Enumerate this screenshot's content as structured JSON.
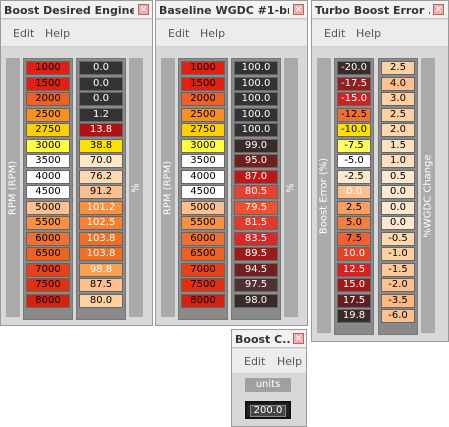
{
  "windows": [
    {
      "title": "Boost Desired Engine ...",
      "menu": [
        "Edit",
        "Help"
      ],
      "axis_label": "RPM (RPM)",
      "value_label": "%",
      "rows": [
        {
          "x": "1000",
          "xc": "#e02010",
          "v": "0.0",
          "vc": "#333333",
          "vt": "#ffffff"
        },
        {
          "x": "1500",
          "xc": "#e02010",
          "v": "0.0",
          "vc": "#333333",
          "vt": "#ffffff"
        },
        {
          "x": "2000",
          "xc": "#f06020",
          "v": "0.0",
          "vc": "#333333",
          "vt": "#ffffff"
        },
        {
          "x": "2500",
          "xc": "#f89020",
          "v": "1.2",
          "vc": "#333333",
          "vt": "#ffffff"
        },
        {
          "x": "2750",
          "xc": "#ffd000",
          "v": "13.8",
          "vc": "#b01010",
          "vt": "#ffffff"
        },
        {
          "x": "3000",
          "xc": "#ffff40",
          "v": "38.8",
          "vc": "#ffe000",
          "vt": "#000000"
        },
        {
          "x": "3500",
          "xc": "#ffffff",
          "v": "70.0",
          "vc": "#ffe8c8",
          "vt": "#000000"
        },
        {
          "x": "4000",
          "xc": "#ffffff",
          "v": "76.2",
          "vc": "#ffd8b0",
          "vt": "#000000"
        },
        {
          "x": "4500",
          "xc": "#ffffff",
          "v": "91.2",
          "vc": "#ffc090",
          "vt": "#000000"
        },
        {
          "x": "5000",
          "xc": "#ffc090",
          "v": "101.2",
          "vc": "#f89040",
          "vt": "#ffffff"
        },
        {
          "x": "5500",
          "xc": "#f89040",
          "v": "102.5",
          "vc": "#f88030",
          "vt": "#ffffff"
        },
        {
          "x": "6000",
          "xc": "#f07030",
          "v": "103.8",
          "vc": "#f07020",
          "vt": "#ffffff"
        },
        {
          "x": "6500",
          "xc": "#f06020",
          "v": "103.8",
          "vc": "#f07020",
          "vt": "#ffffff"
        },
        {
          "x": "7000",
          "xc": "#e84018",
          "v": "98.8",
          "vc": "#f8a050",
          "vt": "#ffffff"
        },
        {
          "x": "7500",
          "xc": "#e03010",
          "v": "87.5",
          "vc": "#ffc090",
          "vt": "#000000"
        },
        {
          "x": "8000",
          "xc": "#d82010",
          "v": "80.0",
          "vc": "#ffd0a0",
          "vt": "#000000"
        }
      ]
    },
    {
      "title": "Baseline WGDC #1-br...",
      "menu": [
        "Edit",
        "Help"
      ],
      "axis_label": "RPM (RPM)",
      "value_label": "%",
      "rows": [
        {
          "x": "1000",
          "xc": "#e02010",
          "v": "100.0",
          "vc": "#333333",
          "vt": "#ffffff"
        },
        {
          "x": "1500",
          "xc": "#e02010",
          "v": "100.0",
          "vc": "#333333",
          "vt": "#ffffff"
        },
        {
          "x": "2000",
          "xc": "#f06020",
          "v": "100.0",
          "vc": "#333333",
          "vt": "#ffffff"
        },
        {
          "x": "2500",
          "xc": "#f89020",
          "v": "100.0",
          "vc": "#333333",
          "vt": "#ffffff"
        },
        {
          "x": "2750",
          "xc": "#ffd000",
          "v": "100.0",
          "vc": "#333333",
          "vt": "#ffffff"
        },
        {
          "x": "3000",
          "xc": "#ffff40",
          "v": "99.0",
          "vc": "#3a2a2a",
          "vt": "#ffffff"
        },
        {
          "x": "3500",
          "xc": "#ffffff",
          "v": "95.0",
          "vc": "#702020",
          "vt": "#ffffff"
        },
        {
          "x": "4000",
          "xc": "#ffffff",
          "v": "87.0",
          "vc": "#c01818",
          "vt": "#ffffff"
        },
        {
          "x": "4500",
          "xc": "#ffffff",
          "v": "80.5",
          "vc": "#e84030",
          "vt": "#ffffff"
        },
        {
          "x": "5000",
          "xc": "#ffc090",
          "v": "79.5",
          "vc": "#f05030",
          "vt": "#ffffff"
        },
        {
          "x": "5500",
          "xc": "#f89040",
          "v": "81.5",
          "vc": "#e83828",
          "vt": "#ffffff"
        },
        {
          "x": "6000",
          "xc": "#f07030",
          "v": "83.5",
          "vc": "#d82828",
          "vt": "#ffffff"
        },
        {
          "x": "6500",
          "xc": "#f06020",
          "v": "89.5",
          "vc": "#a01818",
          "vt": "#ffffff"
        },
        {
          "x": "7000",
          "xc": "#e84018",
          "v": "94.5",
          "vc": "#702020",
          "vt": "#ffffff"
        },
        {
          "x": "7500",
          "xc": "#e03010",
          "v": "97.5",
          "vc": "#503030",
          "vt": "#ffffff"
        },
        {
          "x": "8000",
          "xc": "#d82010",
          "v": "98.0",
          "vc": "#3a2a2a",
          "vt": "#ffffff"
        }
      ]
    },
    {
      "title": "Turbo Boost Error ...",
      "menu": [
        "Edit",
        "Help"
      ],
      "axis_label": "Boost Error (%)",
      "value_label": "%WGDC Change",
      "rows": [
        {
          "x": "-20.0",
          "xc": "#3a2a2a",
          "v": "2.5",
          "vc": "#ffd0a0",
          "vt": "#000000"
        },
        {
          "x": "-17.5",
          "xc": "#902020",
          "v": "4.0",
          "vc": "#ffc090",
          "vt": "#000000"
        },
        {
          "x": "-15.0",
          "xc": "#d02020",
          "v": "3.0",
          "vc": "#ffd0a0",
          "vt": "#000000"
        },
        {
          "x": "-12.5",
          "xc": "#f07030",
          "v": "2.5",
          "vc": "#ffd0a0",
          "vt": "#000000"
        },
        {
          "x": "-10.0",
          "xc": "#ffe000",
          "v": "2.0",
          "vc": "#ffd8b0",
          "vt": "#000000"
        },
        {
          "x": "-7.5",
          "xc": "#ffff60",
          "v": "1.5",
          "vc": "#ffe0c0",
          "vt": "#000000"
        },
        {
          "x": "-5.0",
          "xc": "#ffffff",
          "v": "1.0",
          "vc": "#ffe0c0",
          "vt": "#000000"
        },
        {
          "x": "-2.5",
          "xc": "#ffe8d0",
          "v": "0.5",
          "vc": "#ffe8d0",
          "vt": "#000000"
        },
        {
          "x": "0.0",
          "xc": "#ffc090",
          "v": "0.0",
          "vc": "#ffe8d0",
          "vt": "#000000"
        },
        {
          "x": "2.5",
          "xc": "#f8a060",
          "v": "0.0",
          "vc": "#ffe8d0",
          "vt": "#000000"
        },
        {
          "x": "5.0",
          "xc": "#f08040",
          "v": "0.0",
          "vc": "#ffe8d0",
          "vt": "#000000"
        },
        {
          "x": "7.5",
          "xc": "#f06030",
          "v": "-0.5",
          "vc": "#ffd8b0",
          "vt": "#000000"
        },
        {
          "x": "10.0",
          "xc": "#e84020",
          "v": "-1.0",
          "vc": "#ffd0a0",
          "vt": "#000000"
        },
        {
          "x": "12.5",
          "xc": "#d82020",
          "v": "-1.5",
          "vc": "#ffc898",
          "vt": "#000000"
        },
        {
          "x": "15.0",
          "xc": "#a01818",
          "v": "-2.0",
          "vc": "#ffc090",
          "vt": "#000000"
        },
        {
          "x": "17.5",
          "xc": "#602020",
          "v": "-3.5",
          "vc": "#ffb880",
          "vt": "#000000"
        },
        {
          "x": "19.8",
          "xc": "#3a2a2a",
          "v": "-6.0",
          "vc": "#ffc090",
          "vt": "#000000"
        }
      ]
    }
  ],
  "small_window": {
    "title": "Boost C...",
    "menu": [
      "Edit",
      "Help"
    ],
    "units_label": "units",
    "value": "200.0"
  }
}
